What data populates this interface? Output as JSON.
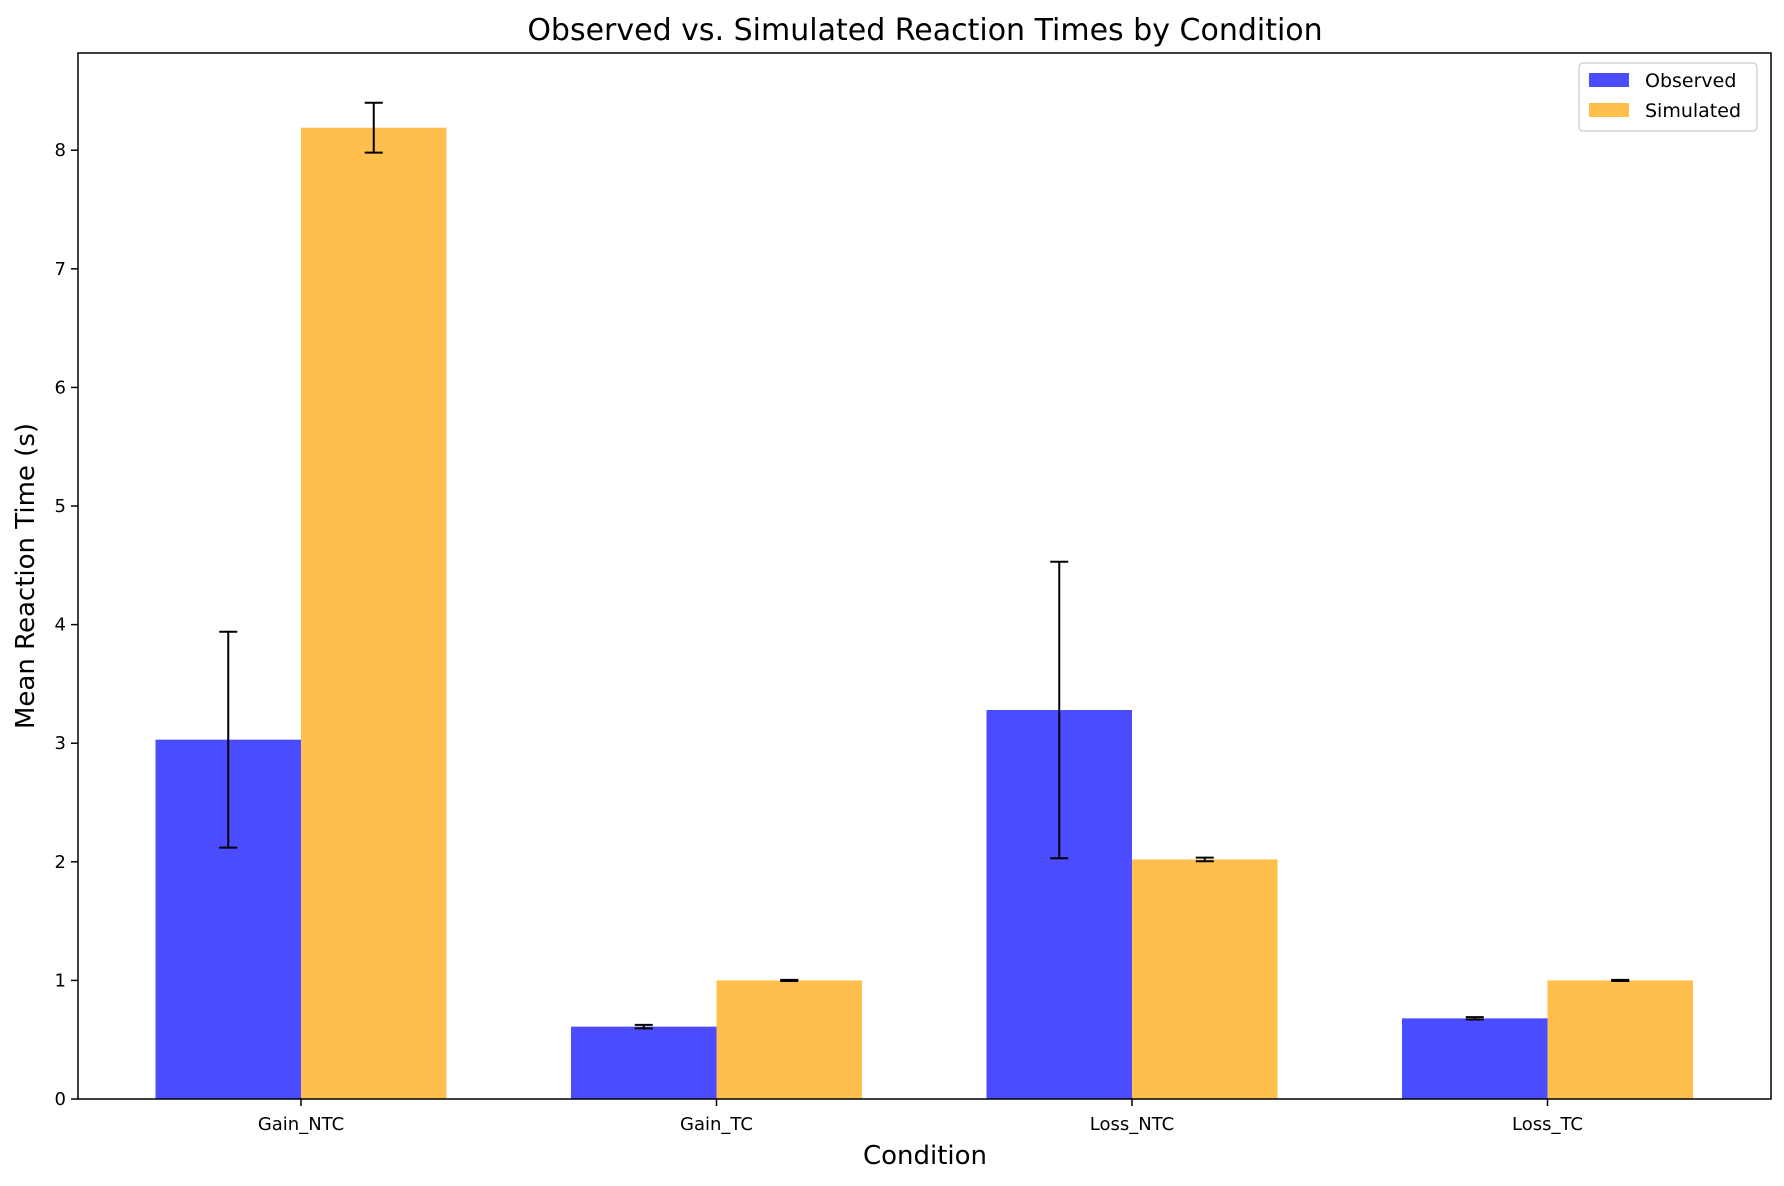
{
  "chart_data": {
    "type": "bar",
    "title": "Observed vs. Simulated Reaction Times by Condition",
    "xlabel": "Condition",
    "ylabel": "Mean Reaction Time (s)",
    "categories": [
      "Gain_NTC",
      "Gain_TC",
      "Loss_NTC",
      "Loss_TC"
    ],
    "ylim": [
      0,
      8.82
    ],
    "yticks": [
      0,
      1,
      2,
      3,
      4,
      5,
      6,
      7,
      8
    ],
    "grid": false,
    "legend_position": "top-right",
    "series": [
      {
        "name": "Observed",
        "color": "#4b4bff",
        "values": [
          3.03,
          0.61,
          3.28,
          0.68
        ],
        "errors": [
          0.91,
          0.015,
          1.25,
          0.01
        ]
      },
      {
        "name": "Simulated",
        "color": "#ffbf4d",
        "values": [
          8.19,
          1.0,
          2.02,
          1.0
        ],
        "errors": [
          0.21,
          0.005,
          0.015,
          0.005
        ]
      }
    ]
  }
}
